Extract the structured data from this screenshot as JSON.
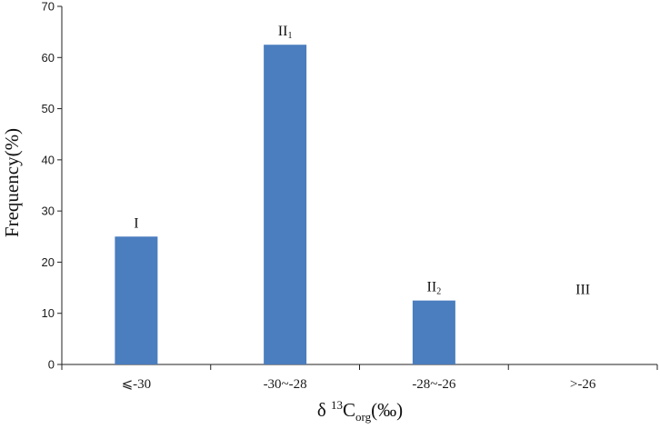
{
  "chart_data": {
    "type": "bar",
    "categories": [
      "⩽-30",
      "-30~-28",
      "-28~-26",
      ">-26"
    ],
    "values": [
      25,
      62.5,
      12.5,
      0
    ],
    "annotations": [
      {
        "main": "I",
        "sub": ""
      },
      {
        "main": "II",
        "sub": "1"
      },
      {
        "main": "II",
        "sub": "2"
      },
      {
        "main": "III",
        "sub": ""
      }
    ],
    "title": "",
    "xlabel": {
      "prefix": "δ ",
      "sup": "13",
      "base": "C",
      "sub": "org",
      "suffix": "(‰)"
    },
    "ylabel": "Frequency(%)",
    "ylim": [
      0,
      70
    ],
    "yticks": [
      0,
      10,
      20,
      30,
      40,
      50,
      60,
      70
    ],
    "bar_color": "#4a7ebf",
    "axis_color": "#222222",
    "grid": false,
    "legend": "none"
  }
}
